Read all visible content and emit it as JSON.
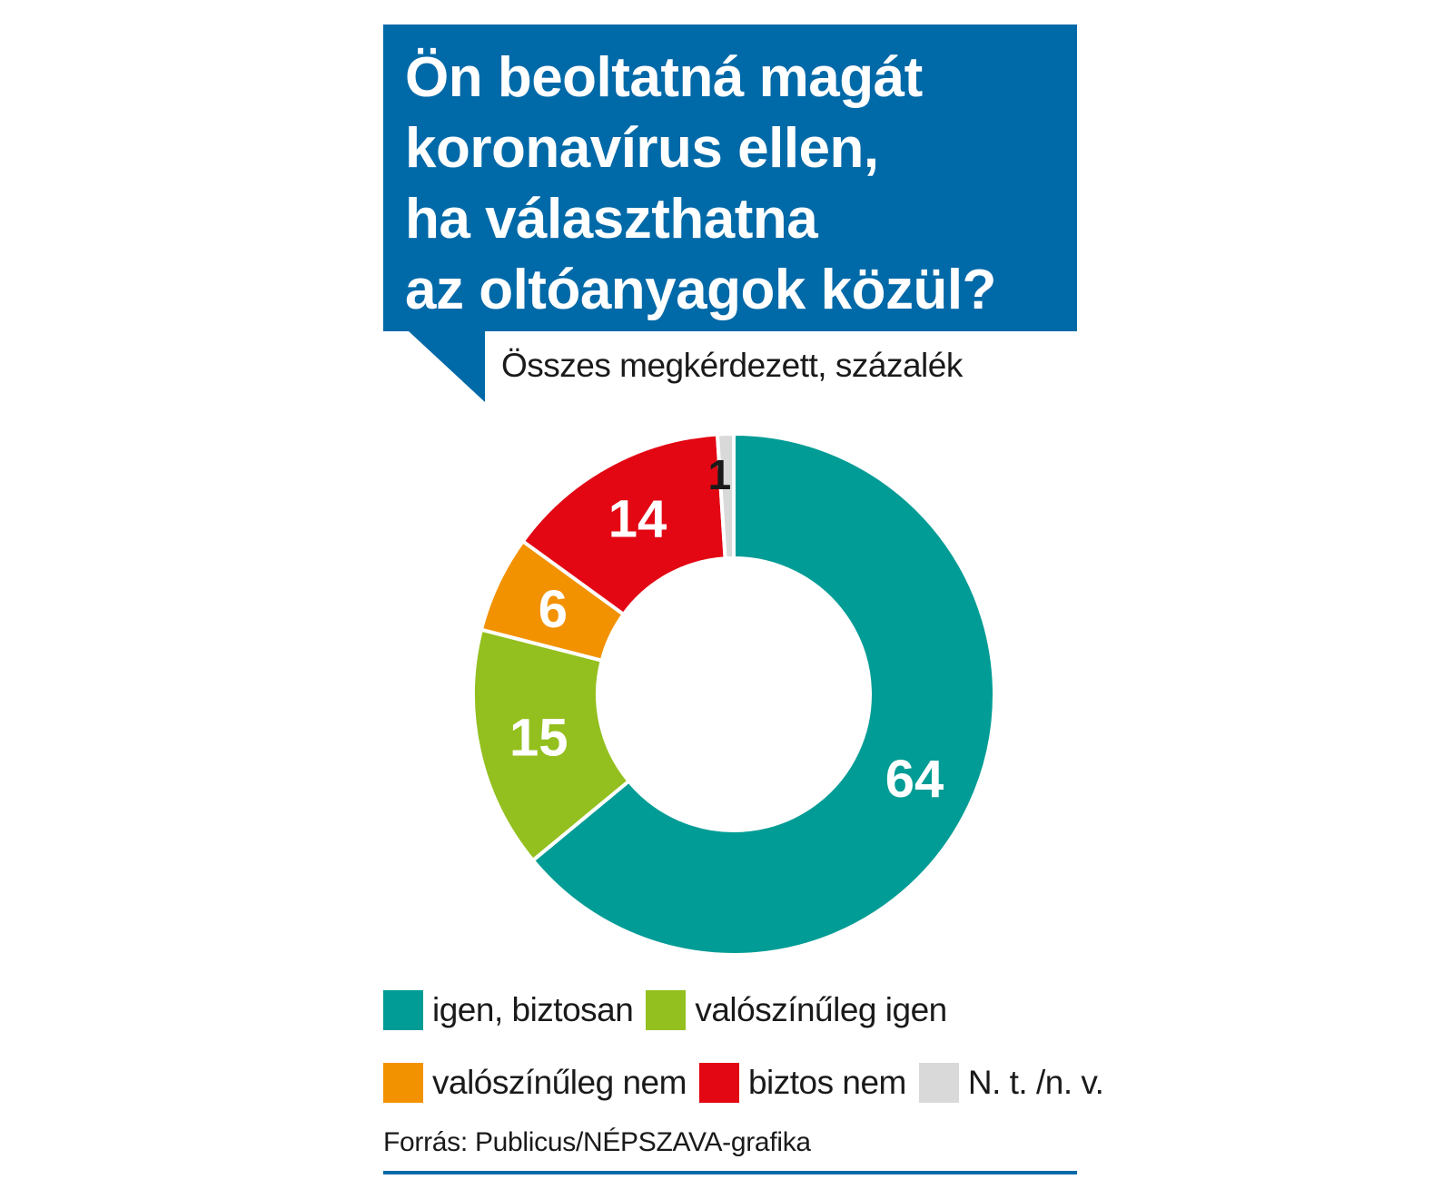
{
  "title": {
    "lines": [
      "Ön beoltatná magát",
      "koronavírus ellen,",
      "ha választhatna",
      "az oltóanyagok közül?"
    ]
  },
  "subtitle": "Összes megkérdezett, százalék",
  "source": "Forrás: Publicus/NÉPSZAVA-grafika",
  "colors": {
    "title_bg": "#0069a8",
    "rule": "#0069a8"
  },
  "chart_data": {
    "type": "pie",
    "style": "donut",
    "unit": "%",
    "slices": [
      {
        "label": "igen, biztosan",
        "value": 64,
        "color": "#009c95",
        "value_label": "64",
        "label_color": "#ffffff"
      },
      {
        "label": "valószínűleg igen",
        "value": 15,
        "color": "#93c01f",
        "value_label": "15",
        "label_color": "#ffffff"
      },
      {
        "label": "valószínűleg nem",
        "value": 6,
        "color": "#f39200",
        "value_label": "6",
        "label_color": "#ffffff"
      },
      {
        "label": "biztos nem",
        "value": 14,
        "color": "#e30613",
        "value_label": "14",
        "label_color": "#ffffff"
      },
      {
        "label": "N. t. /n. v.",
        "value": 1,
        "color": "#d9d9d9",
        "value_label": "1",
        "label_color": "#1a1a1a"
      }
    ],
    "legend": {
      "rows": [
        [
          0,
          1
        ],
        [
          2,
          3,
          4
        ]
      ]
    }
  }
}
